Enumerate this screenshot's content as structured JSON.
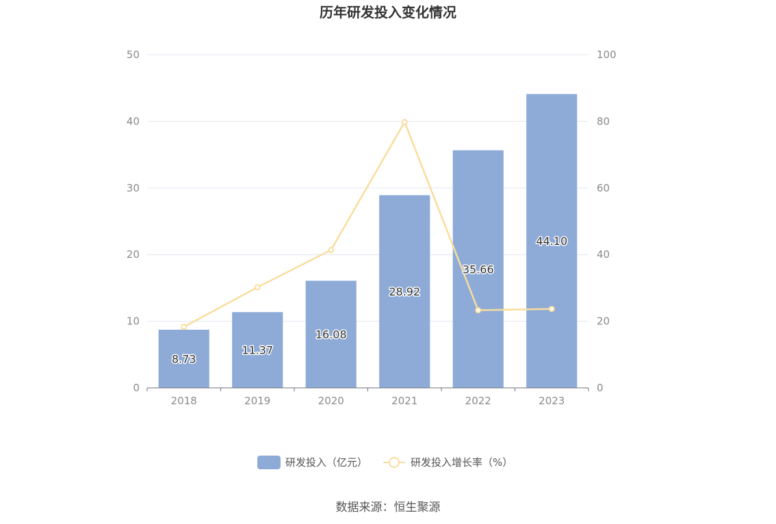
{
  "chart_data": {
    "type": "bar",
    "title": "历年研发投入变化情况",
    "categories": [
      "2018",
      "2019",
      "2020",
      "2021",
      "2022",
      "2023"
    ],
    "series": [
      {
        "name": "研发投入（亿元）",
        "type": "bar",
        "axis": "left",
        "color": "#8eabd8",
        "values": [
          8.73,
          11.37,
          16.08,
          28.92,
          35.66,
          44.1
        ],
        "labels": [
          "8.73",
          "11.37",
          "16.08",
          "28.92",
          "35.66",
          "44.10"
        ]
      },
      {
        "name": "研发投入增长率（%）",
        "type": "line",
        "axis": "right",
        "color": "#f9dd9c",
        "values": [
          18.3,
          30.2,
          41.4,
          79.8,
          23.3,
          23.7
        ]
      }
    ],
    "y_left": {
      "min": 0,
      "max": 50,
      "ticks": [
        "0",
        "10",
        "20",
        "30",
        "40",
        "50"
      ]
    },
    "y_right": {
      "min": 0,
      "max": 100,
      "ticks": [
        "0",
        "20",
        "40",
        "60",
        "80",
        "100"
      ]
    },
    "grid": true,
    "legend_position": "bottom-center",
    "source": "数据来源：恒生聚源"
  }
}
